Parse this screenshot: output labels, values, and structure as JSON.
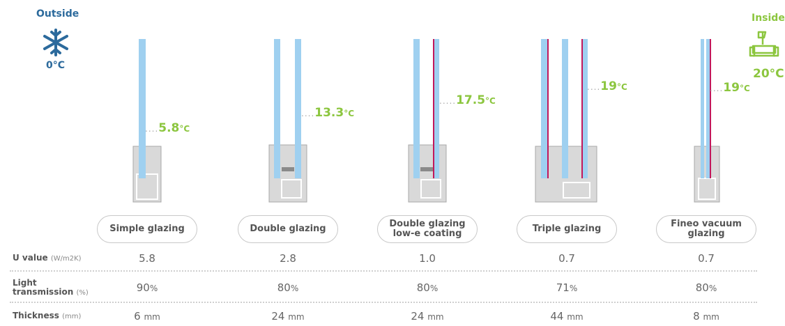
{
  "outside": {
    "label": "Outside",
    "temp": "0°C"
  },
  "inside": {
    "label": "Inside",
    "temp": "20°C"
  },
  "glazings": [
    {
      "name_lines": [
        "Simple glazing"
      ],
      "temp_value": "5.8",
      "temp_unit": "°C",
      "u_value": "5.8",
      "light_value": "90",
      "light_unit": "%",
      "thickness_value": "6",
      "thickness_unit": "mm"
    },
    {
      "name_lines": [
        "Double glazing"
      ],
      "temp_value": "13.3",
      "temp_unit": "°C",
      "u_value": "2.8",
      "light_value": "80",
      "light_unit": "%",
      "thickness_value": "24",
      "thickness_unit": "mm"
    },
    {
      "name_lines": [
        "Double glazing",
        "low-e coating"
      ],
      "temp_value": "17.5",
      "temp_unit": "°C",
      "u_value": "1.0",
      "light_value": "80",
      "light_unit": "%",
      "thickness_value": "24",
      "thickness_unit": "mm"
    },
    {
      "name_lines": [
        "Triple glazing"
      ],
      "temp_value": "19",
      "temp_unit": "°C",
      "u_value": "0.7",
      "light_value": "71",
      "light_unit": "%",
      "thickness_value": "44",
      "thickness_unit": "mm"
    },
    {
      "name_lines": [
        "Fineo vacuum",
        "glazing"
      ],
      "temp_value": "19",
      "temp_unit": "°C",
      "u_value": "0.7",
      "light_value": "80",
      "light_unit": "%",
      "thickness_value": "8",
      "thickness_unit": "mm"
    }
  ],
  "rows": {
    "u_value": {
      "label": "U value",
      "unit": "(W/m2K)"
    },
    "light": {
      "label_lines": [
        "Light",
        "transmission"
      ],
      "unit": "(%)"
    },
    "thickness": {
      "label": "Thickness",
      "unit": "(mm)"
    }
  },
  "colors": {
    "outside": "#2c6a9c",
    "inside": "#8cc63f",
    "glass": "#9fd0f0",
    "lowe": "#c2185b",
    "frame": "#d9d9d9"
  },
  "icons": {
    "outside": "snowflake-icon",
    "inside": "sofa-icon"
  }
}
